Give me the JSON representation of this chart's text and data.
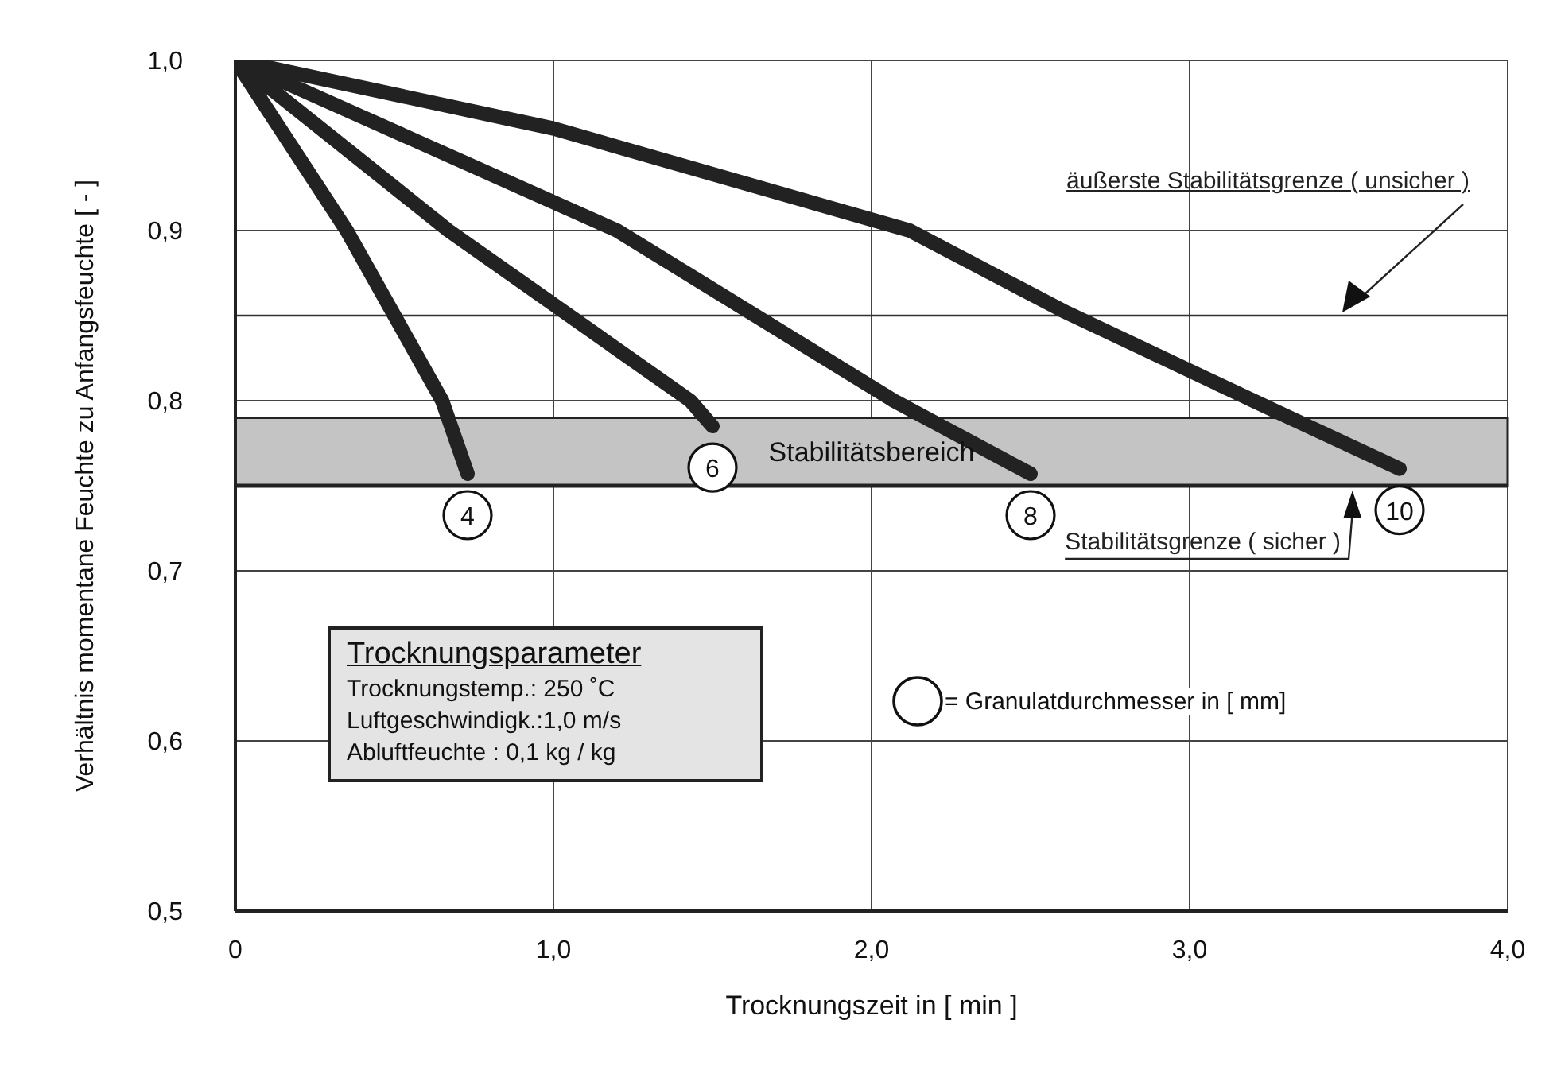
{
  "chart_data": {
    "type": "line",
    "xlabel": "Trocknungszeit in [ min ]",
    "ylabel": "Verhältnis momentane Feuchte zu Anfangsfeuchte [ - ]",
    "xlim": [
      0,
      4
    ],
    "xticks": [
      0,
      {
        "value": 1,
        "label": "1,0"
      },
      {
        "value": 2,
        "label": "2,0"
      },
      {
        "value": 3,
        "label": "3,0"
      },
      {
        "value": 4,
        "label": "4,0"
      }
    ],
    "ylim": [
      0.5,
      1
    ],
    "yticks": [
      {
        "value": 0.5,
        "label": "0,5"
      },
      {
        "value": 0.6,
        "label": "0,6"
      },
      {
        "value": 0.7,
        "label": "0,7"
      },
      {
        "value": 0.8,
        "label": "0,8"
      },
      {
        "value": 0.9,
        "label": "0,9"
      },
      {
        "value": 1,
        "label": "1,0"
      }
    ],
    "grid": true,
    "marker": "none",
    "line_style": "solid",
    "series": [
      {
        "name": "4",
        "color": "#222222",
        "x": [
          0,
          0.35,
          0.65,
          0.73
        ],
        "values": [
          1,
          0.9,
          0.8,
          0.757
        ]
      },
      {
        "name": "6",
        "color": "#222222",
        "x": [
          0,
          0.67,
          1.43,
          1.5
        ],
        "values": [
          1,
          0.9,
          0.8,
          0.785
        ]
      },
      {
        "name": "8",
        "color": "#222222",
        "x": [
          0,
          1.2,
          2.07,
          2.5
        ],
        "values": [
          1,
          0.9,
          0.8,
          0.757
        ]
      },
      {
        "name": "10",
        "color": "#222222",
        "x": [
          0,
          1.0,
          2.12,
          2.6,
          3.2,
          3.66
        ],
        "values": [
          1,
          0.96,
          0.9,
          0.853,
          0.8,
          0.76
        ]
      }
    ],
    "ref_lines": [
      {
        "axis": "y",
        "value": 0.85,
        "label": "äußerste Stabilitätsgrenze ( unsicher )",
        "color": "#333333"
      },
      {
        "axis": "y",
        "value": 0.75,
        "label": "Stabilitätsgrenze ( sicher )",
        "color": "#222222"
      }
    ],
    "bands": [
      {
        "axis": "y",
        "from": 0.75,
        "to": 0.79,
        "label": "Stabilitätsbereich",
        "color": "#c4c4c4"
      }
    ],
    "annotations": [
      "Trocknungsparameter",
      "Trocknungstemp.: 250 ˚C",
      "Luftgeschwindigk.:1,0 m/s",
      "Abluftfeuchte :  0,1 kg / kg",
      "= Granulatdurchmesser in [ mm]"
    ]
  }
}
